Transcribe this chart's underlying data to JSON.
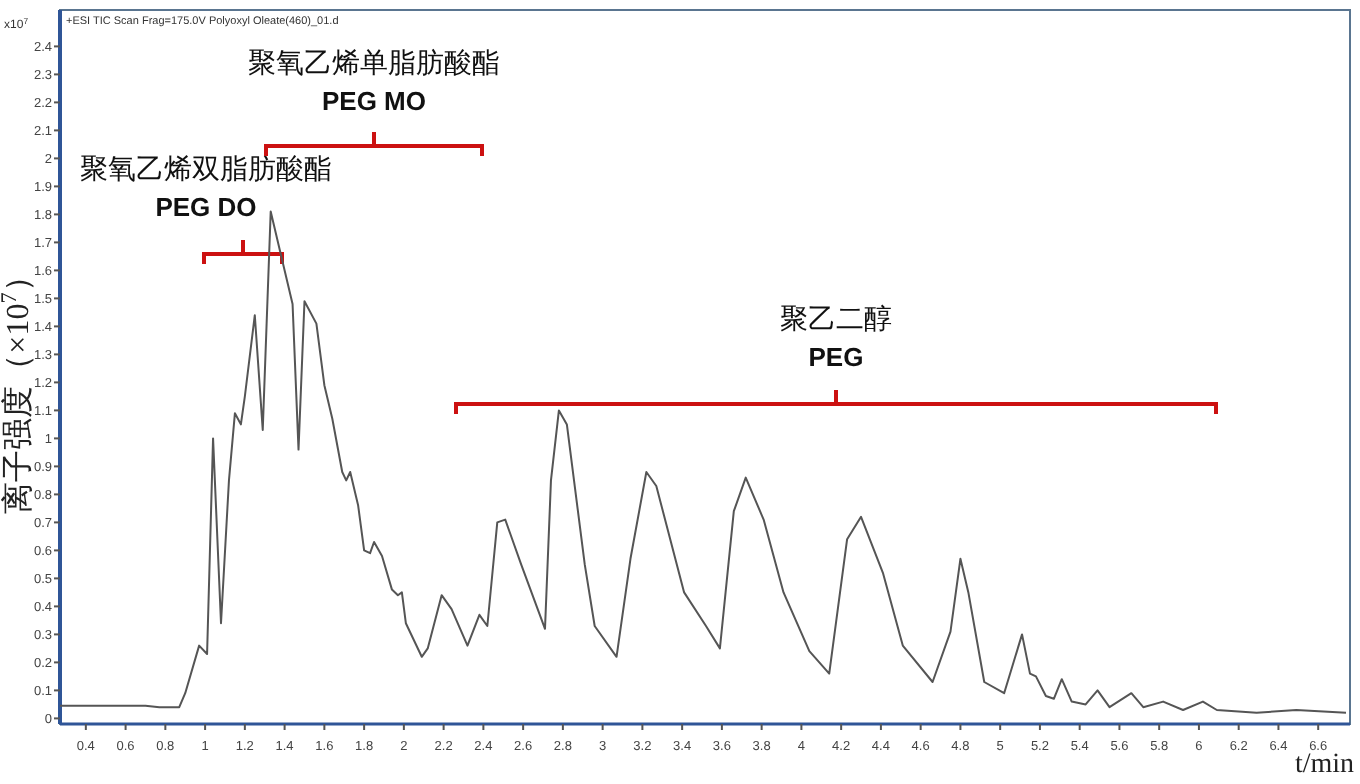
{
  "chart_data": {
    "type": "line",
    "ylabel": "离子强度（×10$^{7}$）",
    "xlabel": "t/min",
    "annotations": [
      "+ESI TIC Scan Frag=175.0V Polyoxyl Oleate(460)_01.d",
      "x10$^{7}$",
      "聚氧乙烯双脂肪酸酯\nPEG DO",
      "聚氧乙烯单脂肪酸酯\nPEG MO",
      "聚乙二醇\nPEG"
    ],
    "xlim": [
      0.27,
      6.76
    ],
    "ylim": [
      -0.02,
      2.53
    ],
    "xticks": [
      0.4,
      0.6,
      0.8,
      1,
      1.2,
      1.4,
      1.6,
      1.8,
      2,
      2.2,
      2.4,
      2.6,
      2.8,
      3,
      3.2,
      3.4,
      3.6,
      3.8,
      4,
      4.2,
      4.4,
      4.6,
      4.8,
      5,
      5.2,
      5.4,
      5.6,
      5.8,
      6,
      6.2,
      6.4,
      6.6
    ],
    "yticks": [
      0,
      0.1,
      0.2,
      0.3,
      0.4,
      0.5,
      0.6,
      0.7,
      0.8,
      0.9,
      1,
      1.1,
      1.2,
      1.3,
      1.4,
      1.5,
      1.6,
      1.7,
      1.8,
      1.9,
      2,
      2.1,
      2.2,
      2.3,
      2.4
    ],
    "grid": false,
    "marker": "none",
    "line_style": "solid",
    "series": [
      {
        "color": "#555555",
        "x": [
          0.27,
          0.7,
          0.77,
          0.87,
          0.9,
          0.97,
          1.01,
          1.04,
          1.08,
          1.12,
          1.15,
          1.18,
          1.2,
          1.25,
          1.29,
          1.33,
          1.44,
          1.47,
          1.5,
          1.56,
          1.6,
          1.64,
          1.69,
          1.71,
          1.73,
          1.77,
          1.8,
          1.83,
          1.85,
          1.89,
          1.94,
          1.97,
          1.99,
          2.01,
          2.09,
          2.12,
          2.19,
          2.24,
          2.32,
          2.38,
          2.42,
          2.47,
          2.51,
          2.59,
          2.71,
          2.74,
          2.78,
          2.82,
          2.91,
          2.96,
          3.07,
          3.14,
          3.22,
          3.27,
          3.41,
          3.52,
          3.59,
          3.66,
          3.72,
          3.81,
          3.91,
          4.04,
          4.14,
          4.23,
          4.3,
          4.41,
          4.51,
          4.66,
          4.75,
          4.8,
          4.84,
          4.92,
          5.02,
          5.11,
          5.15,
          5.18,
          5.23,
          5.27,
          5.31,
          5.36,
          5.43,
          5.49,
          5.55,
          5.66,
          5.72,
          5.82,
          5.92,
          6.02,
          6.09,
          6.29,
          6.49,
          6.74
        ],
        "values": [
          0.045,
          0.045,
          0.04,
          0.04,
          0.09,
          0.26,
          0.23,
          1.0,
          0.34,
          0.85,
          1.09,
          1.05,
          1.15,
          1.44,
          1.03,
          1.81,
          1.48,
          0.96,
          1.49,
          1.41,
          1.19,
          1.07,
          0.88,
          0.85,
          0.88,
          0.76,
          0.6,
          0.59,
          0.63,
          0.58,
          0.46,
          0.44,
          0.45,
          0.34,
          0.22,
          0.25,
          0.44,
          0.39,
          0.26,
          0.37,
          0.33,
          0.7,
          0.71,
          0.55,
          0.32,
          0.85,
          1.1,
          1.05,
          0.55,
          0.33,
          0.22,
          0.57,
          0.88,
          0.83,
          0.45,
          0.33,
          0.25,
          0.74,
          0.86,
          0.71,
          0.45,
          0.24,
          0.16,
          0.64,
          0.72,
          0.52,
          0.26,
          0.13,
          0.31,
          0.57,
          0.45,
          0.13,
          0.09,
          0.3,
          0.16,
          0.15,
          0.08,
          0.07,
          0.14,
          0.06,
          0.05,
          0.1,
          0.04,
          0.09,
          0.04,
          0.06,
          0.03,
          0.06,
          0.03,
          0.02,
          0.03,
          0.02
        ]
      }
    ]
  }
}
